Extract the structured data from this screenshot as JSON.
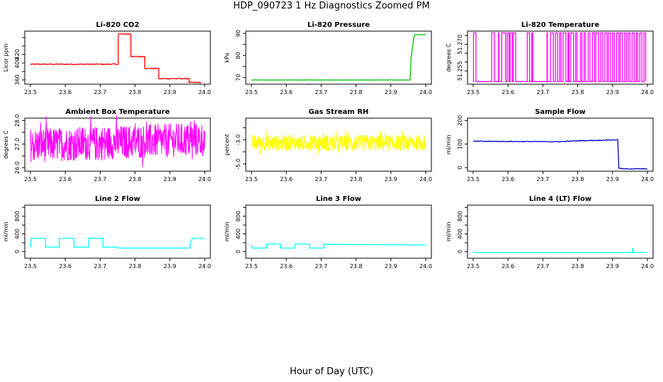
{
  "page": {
    "title": "HDP_090723  1 Hz Diagnostics Zoomed PM",
    "xlabel": "Hour of Day (UTC)"
  },
  "chart_data": [
    {
      "type": "line",
      "title": "Li-820 CO2",
      "xlabel": "",
      "ylabel": "Licor ppm",
      "xlim": [
        23.5,
        24.0
      ],
      "ylim": [
        350,
        475
      ],
      "x_ticks": [
        "23.5",
        "23.6",
        "23.7",
        "23.8",
        "23.9",
        "24.0"
      ],
      "y_ticks": [
        360,
        380,
        400,
        420,
        440,
        460
      ],
      "y_tick_labels": [
        "360",
        "",
        "400",
        "420",
        "",
        ""
      ],
      "color": "#ff0000",
      "noise": 1.2,
      "series": [
        {
          "x": [
            23.5,
            23.752,
            23.752,
            23.788,
            23.788,
            23.828,
            23.828,
            23.868,
            23.868,
            23.955,
            23.955,
            23.99
          ],
          "y": [
            397,
            397,
            468,
            468,
            415,
            415,
            387,
            387,
            363,
            363,
            354,
            354
          ]
        }
      ]
    },
    {
      "type": "line",
      "title": "Li-820 Pressure",
      "xlabel": "",
      "ylabel": "kPa",
      "xlim": [
        23.5,
        24.0
      ],
      "ylim": [
        67,
        91
      ],
      "x_ticks": [
        "23.5",
        "23.6",
        "23.7",
        "23.8",
        "23.9",
        "24.0"
      ],
      "y_ticks": [
        70,
        75,
        80,
        85,
        90
      ],
      "y_tick_labels": [
        "70",
        "",
        "80",
        "",
        "90"
      ],
      "color": "#00bb00",
      "noise": 0.05,
      "series": [
        {
          "x": [
            23.5,
            23.93,
            23.955,
            23.958,
            23.965,
            23.968,
            24.0
          ],
          "y": [
            68.9,
            68.9,
            68.9,
            79,
            87,
            89.4,
            89.4
          ]
        }
      ]
    },
    {
      "type": "line",
      "title": "Li-820 Temperature",
      "xlabel": "",
      "ylabel": "degrees C",
      "xlim": [
        23.5,
        24.0
      ],
      "ylim": [
        51.2475,
        51.2775
      ],
      "x_ticks": [
        "23.5",
        "23.6",
        "23.7",
        "23.8",
        "23.9",
        "24.0"
      ],
      "y_ticks": [
        51.255,
        51.26,
        51.265,
        51.27,
        51.275
      ],
      "y_tick_labels": [
        "51.255",
        "",
        "",
        "51.270",
        ""
      ],
      "color": "#ff00ff",
      "low": 51.249,
      "high": 51.2765,
      "switch_times": [
        23.501,
        23.508,
        23.553,
        23.561,
        23.573,
        23.574,
        23.582,
        23.593,
        23.598,
        23.603,
        23.606,
        23.612,
        23.615,
        23.622,
        23.655,
        23.662,
        23.668,
        23.671,
        23.712,
        23.713,
        23.722,
        23.73,
        23.736,
        23.742,
        23.748,
        23.752,
        23.758,
        23.766,
        23.772,
        23.775,
        23.78,
        23.788,
        23.794,
        23.798,
        23.808,
        23.812,
        23.818,
        23.822,
        23.83,
        23.835,
        23.842,
        23.848,
        23.852,
        23.86,
        23.866,
        23.872,
        23.878,
        23.884,
        23.888,
        23.894,
        23.9,
        23.905,
        23.912,
        23.918,
        23.922,
        23.928,
        23.935,
        23.94,
        23.945,
        23.95,
        23.956,
        23.962,
        23.968,
        23.972,
        23.978,
        23.984,
        23.99,
        23.995
      ]
    },
    {
      "type": "line",
      "title": "Ambient Box Temperature",
      "xlabel": "",
      "ylabel": "degrees C",
      "xlim": [
        23.5,
        24.0
      ],
      "ylim": [
        25.85,
        28.1
      ],
      "x_ticks": [
        "23.5",
        "23.6",
        "23.7",
        "23.8",
        "23.9",
        "24.0"
      ],
      "y_ticks": [
        26.0,
        26.5,
        27.0,
        27.5,
        28.0
      ],
      "y_tick_labels": [
        "26.0",
        "",
        "27.0",
        "",
        "28.0"
      ],
      "color": "#ff00ff",
      "noise_band": [
        26.5,
        27.95
      ],
      "series": [
        {
          "x": [
            23.5,
            23.6,
            23.7,
            23.8,
            23.9,
            24.0
          ],
          "y": [
            26.95,
            27.0,
            27.05,
            27.1,
            27.15,
            27.2
          ]
        }
      ]
    },
    {
      "type": "line",
      "title": "Gas Stream RH",
      "xlabel": "",
      "ylabel": "percent",
      "xlim": [
        23.5,
        24.0
      ],
      "ylim": [
        -5.6,
        -1.2
      ],
      "x_ticks": [
        "23.5",
        "23.6",
        "23.7",
        "23.8",
        "23.9",
        "24.0"
      ],
      "y_ticks": [
        -5,
        -4,
        -3,
        -2
      ],
      "y_tick_labels": [
        "-5.0",
        "",
        "-3.0",
        ""
      ],
      "color": "#ffff00",
      "noise_band": [
        -3.9,
        -2.6
      ],
      "series": [
        {
          "x": [
            23.5,
            24.0
          ],
          "y": [
            -3.25,
            -3.25
          ]
        }
      ]
    },
    {
      "type": "line",
      "title": "Sample Flow",
      "xlabel": "",
      "ylabel": "ml/min",
      "xlim": [
        23.5,
        24.0
      ],
      "ylim": [
        -15,
        210
      ],
      "x_ticks": [
        "23.5",
        "23.6",
        "23.7",
        "23.8",
        "23.9",
        "24.0"
      ],
      "y_ticks": [
        0,
        100,
        200
      ],
      "y_tick_labels": [
        "0",
        "100",
        "200"
      ],
      "color": "#0000cc",
      "noise": 1.5,
      "series": [
        {
          "x": [
            23.5,
            23.62,
            23.75,
            23.8,
            23.915,
            23.918,
            23.93,
            24.0
          ],
          "y": [
            112,
            111,
            110,
            114,
            118,
            -2,
            -5,
            -5
          ]
        }
      ]
    },
    {
      "type": "line",
      "title": "Line 2 Flow",
      "xlabel": "",
      "ylabel": "ml/min",
      "xlim": [
        23.5,
        24.0
      ],
      "ylim": [
        -150,
        1050
      ],
      "x_ticks": [
        "23.5",
        "23.6",
        "23.7",
        "23.8",
        "23.9",
        "24.0"
      ],
      "y_ticks": [
        0,
        200,
        400,
        600,
        800,
        1000
      ],
      "y_tick_labels": [
        "0",
        "",
        "400",
        "",
        "800",
        ""
      ],
      "color": "#00ffff",
      "noise": 0,
      "series": [
        {
          "x": [
            23.5,
            23.502,
            23.543,
            23.543,
            23.583,
            23.583,
            23.625,
            23.625,
            23.667,
            23.667,
            23.708,
            23.708,
            23.75,
            23.75,
            23.958,
            23.958,
            23.965,
            24.0
          ],
          "y": [
            100,
            300,
            300,
            100,
            100,
            300,
            300,
            100,
            100,
            300,
            300,
            100,
            100,
            80,
            80,
            180,
            300,
            300
          ]
        }
      ]
    },
    {
      "type": "line",
      "title": "Line 3 Flow",
      "xlabel": "",
      "ylabel": "ml/min",
      "xlim": [
        23.5,
        24.0
      ],
      "ylim": [
        -150,
        1050
      ],
      "x_ticks": [
        "23.5",
        "23.6",
        "23.7",
        "23.8",
        "23.9",
        "24.0"
      ],
      "y_ticks": [
        0,
        200,
        400,
        600,
        800,
        1000
      ],
      "y_tick_labels": [
        "0",
        "",
        "400",
        "",
        "800",
        ""
      ],
      "color": "#00ffff",
      "noise": 0,
      "series": [
        {
          "x": [
            23.5,
            23.502,
            23.543,
            23.543,
            23.583,
            23.583,
            23.625,
            23.625,
            23.667,
            23.667,
            23.708,
            23.708,
            24.0
          ],
          "y": [
            160,
            80,
            80,
            170,
            170,
            80,
            80,
            170,
            170,
            80,
            80,
            165,
            150
          ]
        }
      ]
    },
    {
      "type": "line",
      "title": "Line 4 (LT) Flow",
      "xlabel": "",
      "ylabel": "ml/min",
      "xlim": [
        23.5,
        24.0
      ],
      "ylim": [
        -150,
        1050
      ],
      "x_ticks": [
        "23.5",
        "23.6",
        "23.7",
        "23.8",
        "23.9",
        "24.0"
      ],
      "y_ticks": [
        0,
        200,
        400,
        600,
        800,
        1000
      ],
      "y_tick_labels": [
        "0",
        "",
        "400",
        "",
        "800",
        ""
      ],
      "color": "#00ffff",
      "noise": 0,
      "series": [
        {
          "x": [
            23.5,
            23.957,
            23.958,
            23.959,
            23.96,
            24.0
          ],
          "y": [
            -20,
            -20,
            80,
            -20,
            -20,
            -20
          ]
        }
      ]
    }
  ]
}
